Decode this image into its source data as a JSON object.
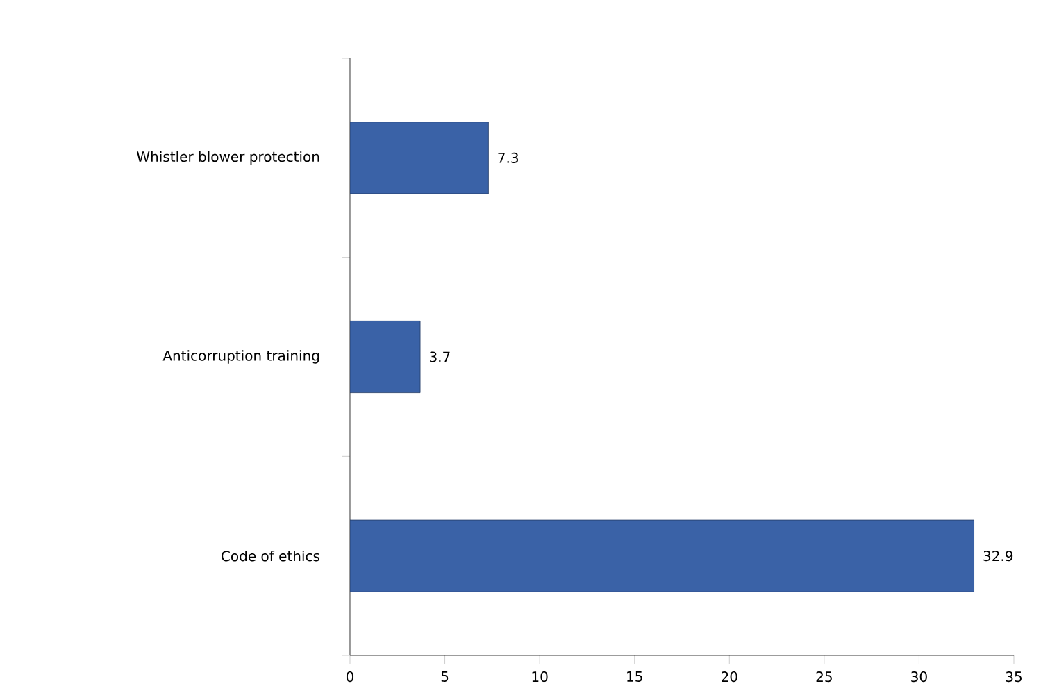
{
  "chart_data": {
    "type": "bar",
    "orientation": "horizontal",
    "categories": [
      "Whistler blower protection",
      "Anticorruption training",
      "Code of ethics"
    ],
    "values": [
      7.3,
      3.7,
      32.9
    ],
    "color": "#3a62a7",
    "xlim": [
      0,
      35
    ],
    "xticks": [
      0,
      5,
      10,
      15,
      20,
      25,
      30,
      35
    ],
    "data_labels": true
  }
}
